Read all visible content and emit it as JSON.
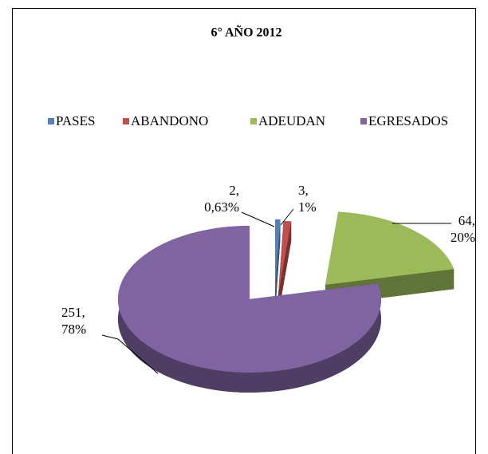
{
  "chart_data": {
    "type": "pie3d",
    "title": "6° AÑO 2012",
    "categories": [
      "PASES",
      "ABANDONO",
      "ADEUDAN",
      "EGRESADOS"
    ],
    "values": [
      2,
      3,
      64,
      251
    ],
    "value_labels": [
      [
        "2,",
        "0,63%"
      ],
      [
        "3,",
        "1%"
      ],
      [
        "64,",
        "20%"
      ],
      [
        "251,",
        "78%"
      ]
    ],
    "colors": [
      "#4f81bd",
      "#c0504d",
      "#9bbb59",
      "#8064a2"
    ],
    "legend": "top"
  }
}
